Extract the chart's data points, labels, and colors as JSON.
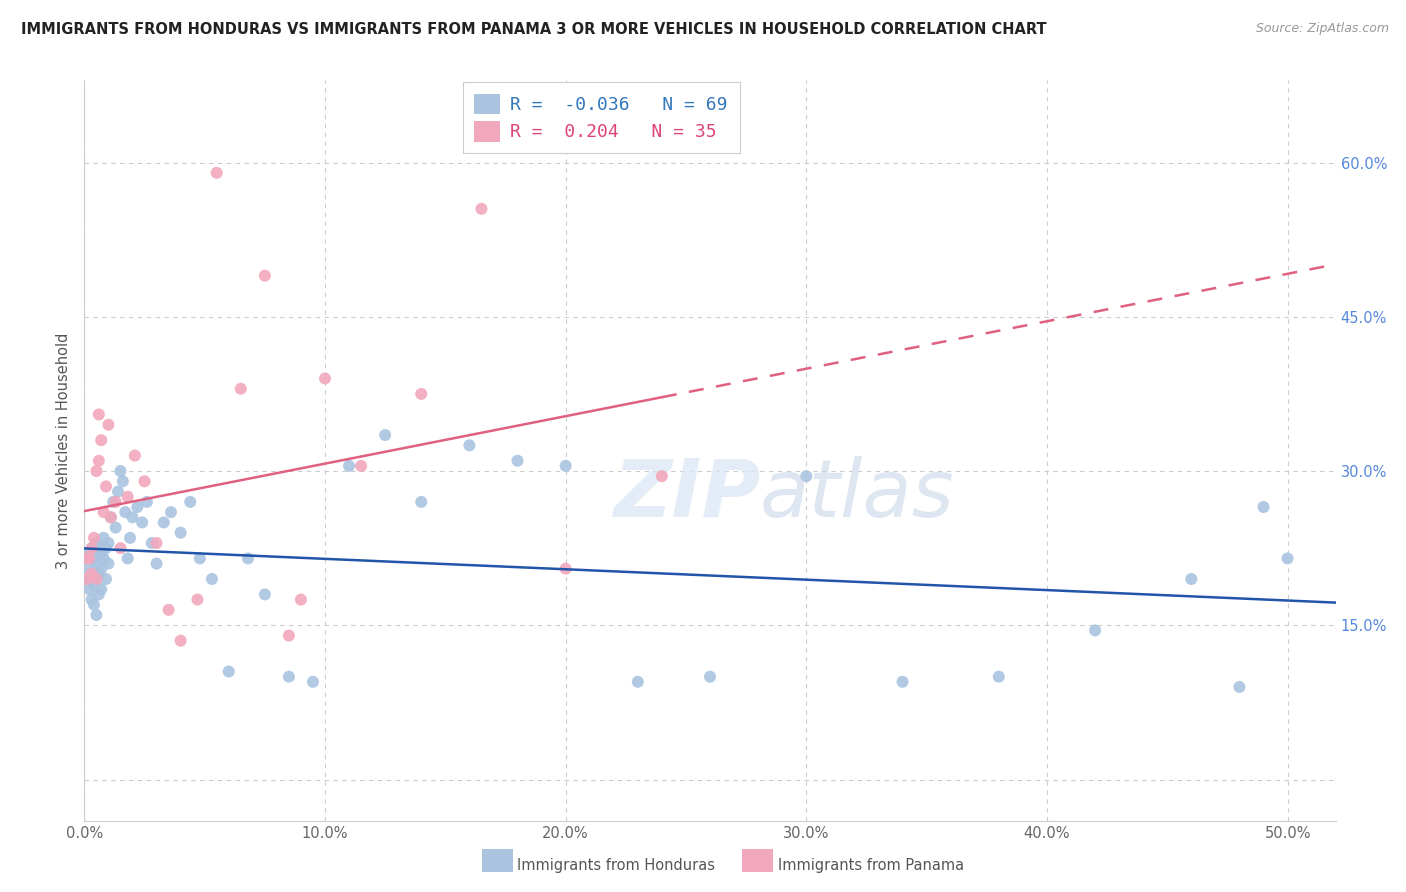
{
  "title": "IMMIGRANTS FROM HONDURAS VS IMMIGRANTS FROM PANAMA 3 OR MORE VEHICLES IN HOUSEHOLD CORRELATION CHART",
  "source": "Source: ZipAtlas.com",
  "ylabel": "3 or more Vehicles in Household",
  "xlim": [
    0.0,
    0.52
  ],
  "ylim": [
    -0.04,
    0.68
  ],
  "xticks": [
    0.0,
    0.1,
    0.2,
    0.3,
    0.4,
    0.5
  ],
  "yticks_right": [
    0.15,
    0.3,
    0.45,
    0.6
  ],
  "grid_color": "#cccccc",
  "background_color": "#ffffff",
  "honduras_color": "#aac4e0",
  "panama_color": "#f2a8bc",
  "honduras_line_color": "#2255aa",
  "panama_line_color": "#e06080",
  "R_honduras": -0.036,
  "N_honduras": 69,
  "R_panama": 0.204,
  "N_panama": 35,
  "watermark": "ZIPatlas",
  "legend_label_honduras": "Immigrants from Honduras",
  "legend_label_panama": "Immigrants from Panama",
  "hon_x": [
    0.001,
    0.001,
    0.002,
    0.002,
    0.002,
    0.003,
    0.003,
    0.003,
    0.004,
    0.004,
    0.004,
    0.005,
    0.005,
    0.005,
    0.005,
    0.006,
    0.006,
    0.006,
    0.007,
    0.007,
    0.007,
    0.008,
    0.008,
    0.009,
    0.009,
    0.01,
    0.01,
    0.011,
    0.012,
    0.013,
    0.014,
    0.015,
    0.016,
    0.017,
    0.018,
    0.019,
    0.02,
    0.022,
    0.024,
    0.026,
    0.028,
    0.03,
    0.033,
    0.036,
    0.04,
    0.044,
    0.048,
    0.053,
    0.06,
    0.068,
    0.075,
    0.085,
    0.095,
    0.11,
    0.125,
    0.14,
    0.16,
    0.18,
    0.2,
    0.23,
    0.26,
    0.3,
    0.34,
    0.38,
    0.42,
    0.46,
    0.48,
    0.49,
    0.5
  ],
  "hon_y": [
    0.215,
    0.195,
    0.22,
    0.205,
    0.185,
    0.225,
    0.2,
    0.175,
    0.215,
    0.19,
    0.17,
    0.23,
    0.21,
    0.195,
    0.16,
    0.225,
    0.2,
    0.18,
    0.22,
    0.205,
    0.185,
    0.235,
    0.215,
    0.225,
    0.195,
    0.23,
    0.21,
    0.255,
    0.27,
    0.245,
    0.28,
    0.3,
    0.29,
    0.26,
    0.215,
    0.235,
    0.255,
    0.265,
    0.25,
    0.27,
    0.23,
    0.21,
    0.25,
    0.26,
    0.24,
    0.27,
    0.215,
    0.195,
    0.105,
    0.215,
    0.18,
    0.1,
    0.095,
    0.305,
    0.335,
    0.27,
    0.325,
    0.31,
    0.305,
    0.095,
    0.1,
    0.295,
    0.095,
    0.1,
    0.145,
    0.195,
    0.09,
    0.265,
    0.215
  ],
  "pan_x": [
    0.001,
    0.001,
    0.002,
    0.003,
    0.003,
    0.004,
    0.005,
    0.005,
    0.006,
    0.006,
    0.007,
    0.008,
    0.009,
    0.01,
    0.011,
    0.013,
    0.015,
    0.018,
    0.021,
    0.025,
    0.03,
    0.035,
    0.04,
    0.047,
    0.055,
    0.065,
    0.075,
    0.085,
    0.09,
    0.1,
    0.115,
    0.14,
    0.165,
    0.2,
    0.24
  ],
  "pan_y": [
    0.215,
    0.195,
    0.215,
    0.225,
    0.2,
    0.235,
    0.3,
    0.195,
    0.355,
    0.31,
    0.33,
    0.26,
    0.285,
    0.345,
    0.255,
    0.27,
    0.225,
    0.275,
    0.315,
    0.29,
    0.23,
    0.165,
    0.135,
    0.175,
    0.59,
    0.38,
    0.49,
    0.14,
    0.175,
    0.39,
    0.305,
    0.375,
    0.555,
    0.205,
    0.295
  ]
}
